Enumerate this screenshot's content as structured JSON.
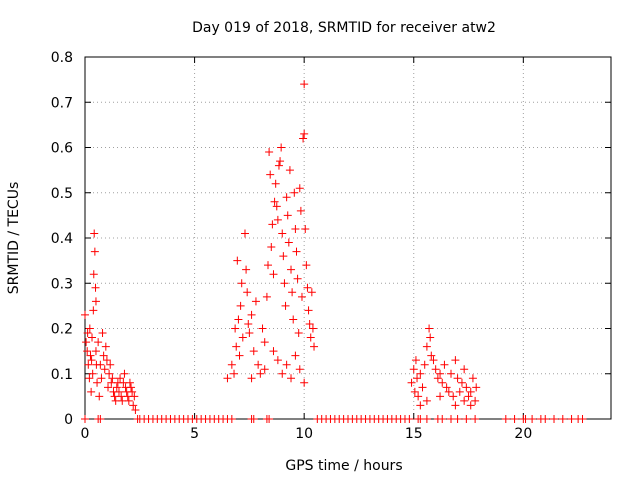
{
  "chart_data": {
    "type": "scatter",
    "title": "Day 019 of 2018, SRMTID for receiver atw2",
    "xlabel": "GPS time / hours",
    "ylabel": "SRMTID / TECUs",
    "xlim": [
      0,
      24
    ],
    "ylim": [
      0,
      0.8
    ],
    "xticks": [
      0,
      5,
      10,
      15,
      20
    ],
    "yticks": [
      0,
      0.1,
      0.2,
      0.3,
      0.4,
      0.5,
      0.6,
      0.7,
      0.8
    ],
    "xtick_labels": [
      "0",
      "5",
      "10",
      "15",
      "20"
    ],
    "ytick_labels": [
      "0",
      "0.1",
      "0.2",
      "0.3",
      "0.4",
      "0.5",
      "0.6",
      "0.7",
      "0.8"
    ],
    "grid": true,
    "marker": "+",
    "color": "#ff0000",
    "series": [
      {
        "name": "SRMTID",
        "points": [
          [
            0.0,
            0.23
          ],
          [
            0.05,
            0.17
          ],
          [
            0.1,
            0.15
          ],
          [
            0.12,
            0.19
          ],
          [
            0.15,
            0.12
          ],
          [
            0.2,
            0.09
          ],
          [
            0.22,
            0.2
          ],
          [
            0.25,
            0.14
          ],
          [
            0.28,
            0.06
          ],
          [
            0.3,
            0.13
          ],
          [
            0.32,
            0.18
          ],
          [
            0.35,
            0.1
          ],
          [
            0.38,
            0.24
          ],
          [
            0.4,
            0.32
          ],
          [
            0.42,
            0.41
          ],
          [
            0.45,
            0.37
          ],
          [
            0.48,
            0.29
          ],
          [
            0.5,
            0.26
          ],
          [
            0.5,
            0.15
          ],
          [
            0.52,
            0.12
          ],
          [
            0.55,
            0.08
          ],
          [
            0.6,
            0.17
          ],
          [
            0.65,
            0.05
          ],
          [
            0.7,
            0.12
          ],
          [
            0.75,
            0.09
          ],
          [
            0.8,
            0.19
          ],
          [
            0.85,
            0.14
          ],
          [
            0.9,
            0.11
          ],
          [
            0.95,
            0.16
          ],
          [
            1.0,
            0.13
          ],
          [
            1.05,
            0.07
          ],
          [
            1.1,
            0.1
          ],
          [
            1.15,
            0.12
          ],
          [
            1.2,
            0.08
          ],
          [
            1.25,
            0.09
          ],
          [
            1.3,
            0.06
          ],
          [
            1.35,
            0.05
          ],
          [
            1.4,
            0.04
          ],
          [
            1.45,
            0.07
          ],
          [
            1.5,
            0.08
          ],
          [
            1.55,
            0.06
          ],
          [
            1.6,
            0.09
          ],
          [
            1.65,
            0.05
          ],
          [
            1.7,
            0.04
          ],
          [
            1.75,
            0.08
          ],
          [
            1.8,
            0.1
          ],
          [
            1.85,
            0.07
          ],
          [
            1.9,
            0.06
          ],
          [
            1.95,
            0.05
          ],
          [
            2.0,
            0.04
          ],
          [
            2.05,
            0.08
          ],
          [
            2.1,
            0.07
          ],
          [
            2.15,
            0.06
          ],
          [
            2.2,
            0.03
          ],
          [
            2.25,
            0.05
          ],
          [
            2.3,
            0.02
          ],
          [
            6.5,
            0.09
          ],
          [
            6.7,
            0.12
          ],
          [
            6.8,
            0.1
          ],
          [
            6.85,
            0.2
          ],
          [
            6.9,
            0.16
          ],
          [
            6.95,
            0.35
          ],
          [
            7.0,
            0.22
          ],
          [
            7.05,
            0.14
          ],
          [
            7.1,
            0.25
          ],
          [
            7.15,
            0.3
          ],
          [
            7.2,
            0.18
          ],
          [
            7.3,
            0.41
          ],
          [
            7.35,
            0.33
          ],
          [
            7.4,
            0.28
          ],
          [
            7.45,
            0.21
          ],
          [
            7.5,
            0.19
          ],
          [
            7.6,
            0.23
          ],
          [
            7.7,
            0.15
          ],
          [
            7.8,
            0.26
          ],
          [
            7.9,
            0.12
          ],
          [
            8.0,
            0.1
          ],
          [
            8.1,
            0.2
          ],
          [
            8.2,
            0.17
          ],
          [
            8.3,
            0.27
          ],
          [
            8.35,
            0.34
          ],
          [
            8.4,
            0.59
          ],
          [
            8.45,
            0.54
          ],
          [
            8.5,
            0.38
          ],
          [
            8.55,
            0.43
          ],
          [
            8.6,
            0.32
          ],
          [
            8.65,
            0.48
          ],
          [
            8.7,
            0.52
          ],
          [
            8.75,
            0.47
          ],
          [
            8.8,
            0.44
          ],
          [
            8.85,
            0.56
          ],
          [
            8.9,
            0.57
          ],
          [
            8.95,
            0.6
          ],
          [
            9.0,
            0.41
          ],
          [
            9.05,
            0.36
          ],
          [
            9.1,
            0.3
          ],
          [
            9.15,
            0.25
          ],
          [
            9.2,
            0.49
          ],
          [
            9.25,
            0.45
          ],
          [
            9.3,
            0.39
          ],
          [
            9.35,
            0.55
          ],
          [
            9.4,
            0.33
          ],
          [
            9.45,
            0.28
          ],
          [
            9.5,
            0.22
          ],
          [
            9.55,
            0.5
          ],
          [
            9.6,
            0.42
          ],
          [
            9.65,
            0.37
          ],
          [
            9.7,
            0.31
          ],
          [
            9.75,
            0.19
          ],
          [
            9.8,
            0.51
          ],
          [
            9.85,
            0.46
          ],
          [
            9.9,
            0.27
          ],
          [
            9.95,
            0.62
          ],
          [
            10.0,
            0.63
          ],
          [
            10.0,
            0.74
          ],
          [
            10.05,
            0.42
          ],
          [
            10.1,
            0.34
          ],
          [
            10.15,
            0.29
          ],
          [
            10.2,
            0.24
          ],
          [
            10.25,
            0.21
          ],
          [
            10.3,
            0.18
          ],
          [
            10.35,
            0.28
          ],
          [
            10.4,
            0.2
          ],
          [
            10.45,
            0.16
          ],
          [
            9.0,
            0.1
          ],
          [
            9.2,
            0.12
          ],
          [
            9.4,
            0.09
          ],
          [
            9.6,
            0.14
          ],
          [
            9.8,
            0.11
          ],
          [
            10.0,
            0.08
          ],
          [
            8.8,
            0.13
          ],
          [
            8.6,
            0.15
          ],
          [
            8.2,
            0.11
          ],
          [
            7.6,
            0.09
          ],
          [
            14.9,
            0.08
          ],
          [
            15.0,
            0.11
          ],
          [
            15.05,
            0.06
          ],
          [
            15.1,
            0.13
          ],
          [
            15.15,
            0.09
          ],
          [
            15.2,
            0.05
          ],
          [
            15.3,
            0.1
          ],
          [
            15.4,
            0.07
          ],
          [
            15.5,
            0.12
          ],
          [
            15.6,
            0.16
          ],
          [
            15.7,
            0.2
          ],
          [
            15.75,
            0.18
          ],
          [
            15.8,
            0.14
          ],
          [
            15.9,
            0.13
          ],
          [
            16.0,
            0.11
          ],
          [
            16.1,
            0.09
          ],
          [
            16.2,
            0.1
          ],
          [
            16.3,
            0.08
          ],
          [
            16.4,
            0.12
          ],
          [
            16.5,
            0.07
          ],
          [
            16.6,
            0.06
          ],
          [
            16.7,
            0.1
          ],
          [
            16.8,
            0.05
          ],
          [
            16.9,
            0.13
          ],
          [
            17.0,
            0.09
          ],
          [
            17.1,
            0.06
          ],
          [
            17.2,
            0.08
          ],
          [
            17.3,
            0.04
          ],
          [
            17.4,
            0.07
          ],
          [
            17.5,
            0.05
          ],
          [
            17.6,
            0.06
          ],
          [
            17.7,
            0.09
          ],
          [
            17.8,
            0.04
          ],
          [
            17.85,
            0.07
          ],
          [
            15.6,
            0.04
          ],
          [
            16.2,
            0.05
          ],
          [
            16.9,
            0.03
          ],
          [
            17.3,
            0.11
          ],
          [
            17.6,
            0.03
          ],
          [
            15.3,
            0.03
          ]
        ],
        "zero_x": [
          0.0,
          0.6,
          0.7,
          2.4,
          2.5,
          2.7,
          2.9,
          3.1,
          3.3,
          3.5,
          3.7,
          3.9,
          4.1,
          4.3,
          4.5,
          4.7,
          4.9,
          5.1,
          5.3,
          5.5,
          5.7,
          5.9,
          6.1,
          6.3,
          6.5,
          6.7,
          7.6,
          7.7,
          8.3,
          8.4,
          10.6,
          10.8,
          11.0,
          11.2,
          11.4,
          11.6,
          11.8,
          12.0,
          12.2,
          12.4,
          12.6,
          12.8,
          13.0,
          13.2,
          13.4,
          13.6,
          13.8,
          14.0,
          14.2,
          14.4,
          14.6,
          14.8,
          15.2,
          15.3,
          15.6,
          16.1,
          16.3,
          16.7,
          17.0,
          17.4,
          17.8,
          19.2,
          19.6,
          20.0,
          20.1,
          20.4,
          20.8,
          21.0,
          21.4,
          21.8,
          22.2,
          22.5,
          22.7
        ]
      }
    ]
  }
}
